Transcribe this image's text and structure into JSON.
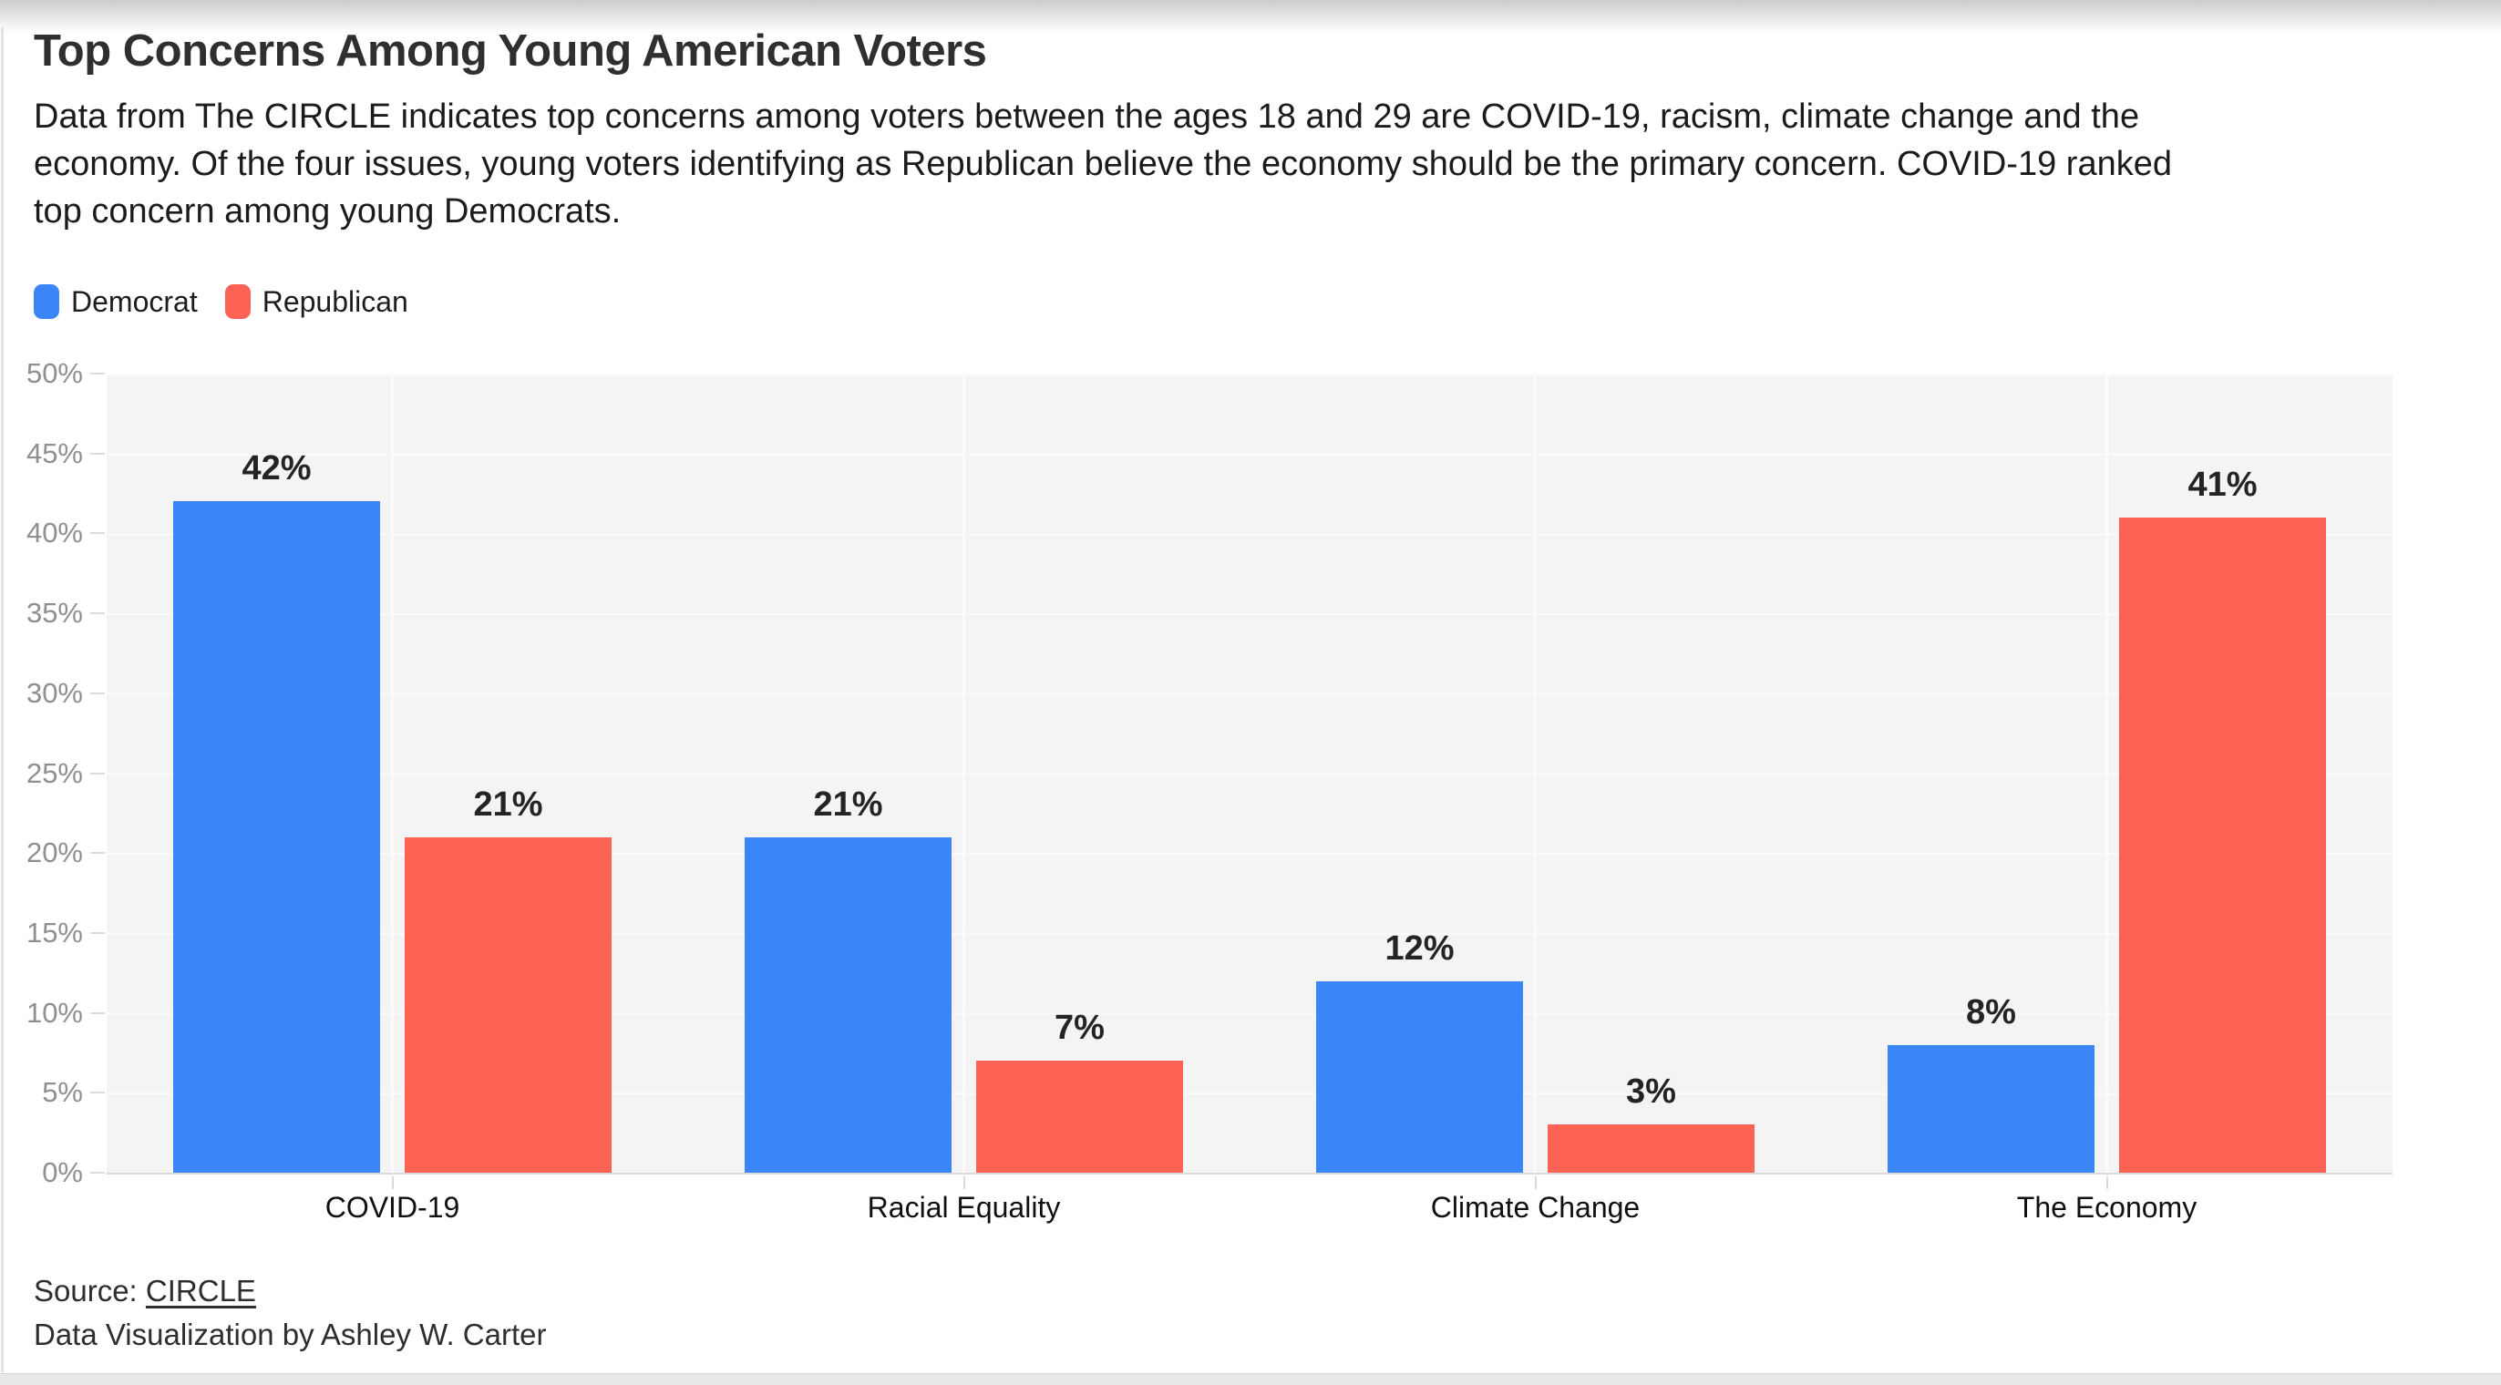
{
  "chart_data": {
    "type": "bar",
    "title": "Top Concerns Among Young American Voters",
    "subtitle_lines": [
      "Data from The CIRCLE indicates top concerns among voters between the ages 18 and 29 are COVID-19, racism, climate change and the",
      "economy. Of the four issues, young voters identifying as Republican believe the economy should be the primary concern. COVID-19 ranked",
      "top concern among young Democrats."
    ],
    "categories": [
      "COVID-19",
      "Racial Equality",
      "Climate Change",
      "The Economy"
    ],
    "series": [
      {
        "name": "Democrat",
        "color": "#3A86F8",
        "values": [
          42,
          21,
          12,
          8
        ],
        "labels": [
          "42%",
          "21%",
          "12%",
          "8%"
        ]
      },
      {
        "name": "Republican",
        "color": "#FC6354",
        "values": [
          21,
          7,
          3,
          41
        ],
        "labels": [
          "21%",
          "7%",
          "3%",
          "41%"
        ]
      }
    ],
    "ylim": [
      0,
      50
    ],
    "yticks": [
      "50%",
      "45%",
      "40%",
      "35%",
      "30%",
      "25%",
      "20%",
      "15%",
      "10%",
      "5%",
      "0%"
    ],
    "grid": true,
    "legend_position": "top-left",
    "plot_bg": "#F4F4F4",
    "xlabel": "",
    "ylabel": ""
  },
  "footer": {
    "source_prefix": "Source: ",
    "source_link_text": "CIRCLE",
    "credit": "Data Visualization by Ashley W. Carter"
  }
}
